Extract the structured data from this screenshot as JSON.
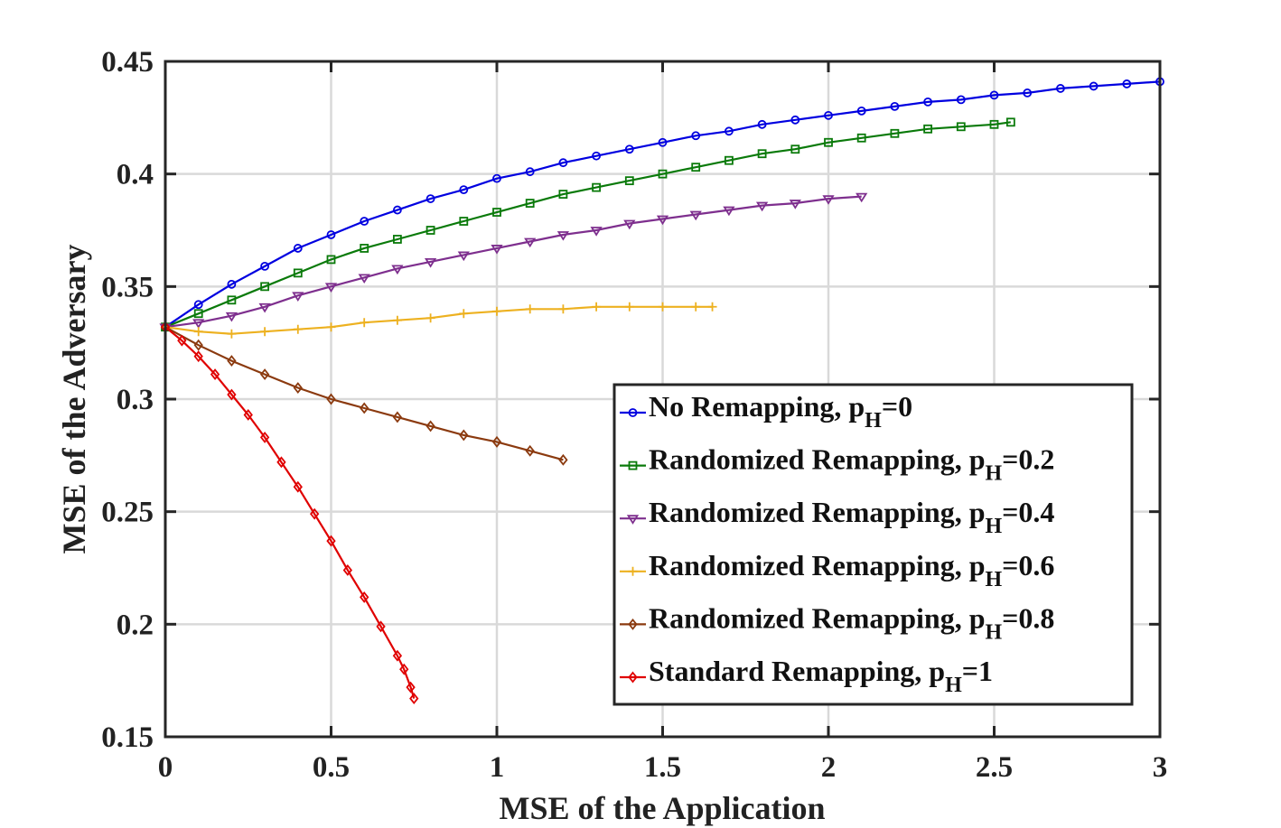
{
  "chart_data": {
    "type": "line",
    "title": "",
    "xlabel": "MSE of the Application",
    "ylabel": "MSE of the Adversary",
    "xlim": [
      0,
      3
    ],
    "ylim": [
      0.15,
      0.45
    ],
    "grid": true,
    "legend_position": "bottom-right",
    "xticks": [
      0,
      0.5,
      1,
      1.5,
      2,
      2.5,
      3
    ],
    "xtick_labels": [
      "0",
      "0.5",
      "1",
      "1.5",
      "2",
      "2.5",
      "3"
    ],
    "yticks": [
      0.15,
      0.2,
      0.25,
      0.3,
      0.35,
      0.4,
      0.45
    ],
    "ytick_labels": [
      "0.15",
      "0.2",
      "0.25",
      "0.3",
      "0.35",
      "0.4",
      "0.45"
    ],
    "series": [
      {
        "name": "No Remapping, p_H=0",
        "legend_main": "No Remapping, p",
        "legend_sub": "H",
        "legend_tail": "=0",
        "color": "#0000e0",
        "marker": "circle",
        "x": [
          0,
          0.1,
          0.2,
          0.3,
          0.4,
          0.5,
          0.6,
          0.7,
          0.8,
          0.9,
          1.0,
          1.1,
          1.2,
          1.3,
          1.4,
          1.5,
          1.6,
          1.7,
          1.8,
          1.9,
          2.0,
          2.1,
          2.2,
          2.3,
          2.4,
          2.5,
          2.6,
          2.7,
          2.8,
          2.9,
          3.0
        ],
        "y": [
          0.332,
          0.342,
          0.351,
          0.359,
          0.367,
          0.373,
          0.379,
          0.384,
          0.389,
          0.393,
          0.398,
          0.401,
          0.405,
          0.408,
          0.411,
          0.414,
          0.417,
          0.419,
          0.422,
          0.424,
          0.426,
          0.428,
          0.43,
          0.432,
          0.433,
          0.435,
          0.436,
          0.438,
          0.439,
          0.44,
          0.441
        ]
      },
      {
        "name": "Randomized Remapping, p_H=0.2",
        "legend_main": "Randomized  Remapping, p",
        "legend_sub": "H",
        "legend_tail": "=0.2",
        "color": "#0a7a0a",
        "marker": "square",
        "x": [
          0,
          0.1,
          0.2,
          0.3,
          0.4,
          0.5,
          0.6,
          0.7,
          0.8,
          0.9,
          1.0,
          1.1,
          1.2,
          1.3,
          1.4,
          1.5,
          1.6,
          1.7,
          1.8,
          1.9,
          2.0,
          2.1,
          2.2,
          2.3,
          2.4,
          2.5,
          2.55
        ],
        "y": [
          0.332,
          0.338,
          0.344,
          0.35,
          0.356,
          0.362,
          0.367,
          0.371,
          0.375,
          0.379,
          0.383,
          0.387,
          0.391,
          0.394,
          0.397,
          0.4,
          0.403,
          0.406,
          0.409,
          0.411,
          0.414,
          0.416,
          0.418,
          0.42,
          0.421,
          0.422,
          0.423
        ]
      },
      {
        "name": "Randomized Remapping, p_H=0.4",
        "legend_main": "Randomized  Remapping, p",
        "legend_sub": "H",
        "legend_tail": "=0.4",
        "color": "#7e2f8e",
        "marker": "triangle-down",
        "x": [
          0,
          0.1,
          0.2,
          0.3,
          0.4,
          0.5,
          0.6,
          0.7,
          0.8,
          0.9,
          1.0,
          1.1,
          1.2,
          1.3,
          1.4,
          1.5,
          1.6,
          1.7,
          1.8,
          1.9,
          2.0,
          2.1
        ],
        "y": [
          0.332,
          0.334,
          0.337,
          0.341,
          0.346,
          0.35,
          0.354,
          0.358,
          0.361,
          0.364,
          0.367,
          0.37,
          0.373,
          0.375,
          0.378,
          0.38,
          0.382,
          0.384,
          0.386,
          0.387,
          0.389,
          0.39
        ]
      },
      {
        "name": "Randomized Remapping, p_H=0.6",
        "legend_main": "Randomized  Remapping, p",
        "legend_sub": "H",
        "legend_tail": "=0.6",
        "color": "#edb120",
        "marker": "plus",
        "x": [
          0,
          0.1,
          0.2,
          0.3,
          0.4,
          0.5,
          0.6,
          0.7,
          0.8,
          0.9,
          1.0,
          1.1,
          1.2,
          1.3,
          1.4,
          1.5,
          1.6,
          1.65
        ],
        "y": [
          0.332,
          0.33,
          0.329,
          0.33,
          0.331,
          0.332,
          0.334,
          0.335,
          0.336,
          0.338,
          0.339,
          0.34,
          0.34,
          0.341,
          0.341,
          0.341,
          0.341,
          0.341
        ]
      },
      {
        "name": "Randomized Remapping, p_H=0.8",
        "legend_main": "Randomized  Remapping, p",
        "legend_sub": "H",
        "legend_tail": "=0.8",
        "color": "#8b3a0f",
        "marker": "diamond",
        "x": [
          0,
          0.1,
          0.2,
          0.3,
          0.4,
          0.5,
          0.6,
          0.7,
          0.8,
          0.9,
          1.0,
          1.1,
          1.2
        ],
        "y": [
          0.332,
          0.324,
          0.317,
          0.311,
          0.305,
          0.3,
          0.296,
          0.292,
          0.288,
          0.284,
          0.281,
          0.277,
          0.273
        ]
      },
      {
        "name": "Standard Remapping, p_H=1",
        "legend_main": "Standard  Remapping, p",
        "legend_sub": "H",
        "legend_tail": "=1",
        "color": "#e00000",
        "marker": "diamond",
        "x": [
          0,
          0.05,
          0.1,
          0.15,
          0.2,
          0.25,
          0.3,
          0.35,
          0.4,
          0.45,
          0.5,
          0.55,
          0.6,
          0.65,
          0.7,
          0.72,
          0.74,
          0.75
        ],
        "y": [
          0.332,
          0.326,
          0.319,
          0.311,
          0.302,
          0.293,
          0.283,
          0.272,
          0.261,
          0.249,
          0.237,
          0.224,
          0.212,
          0.199,
          0.186,
          0.18,
          0.172,
          0.167
        ]
      }
    ]
  }
}
